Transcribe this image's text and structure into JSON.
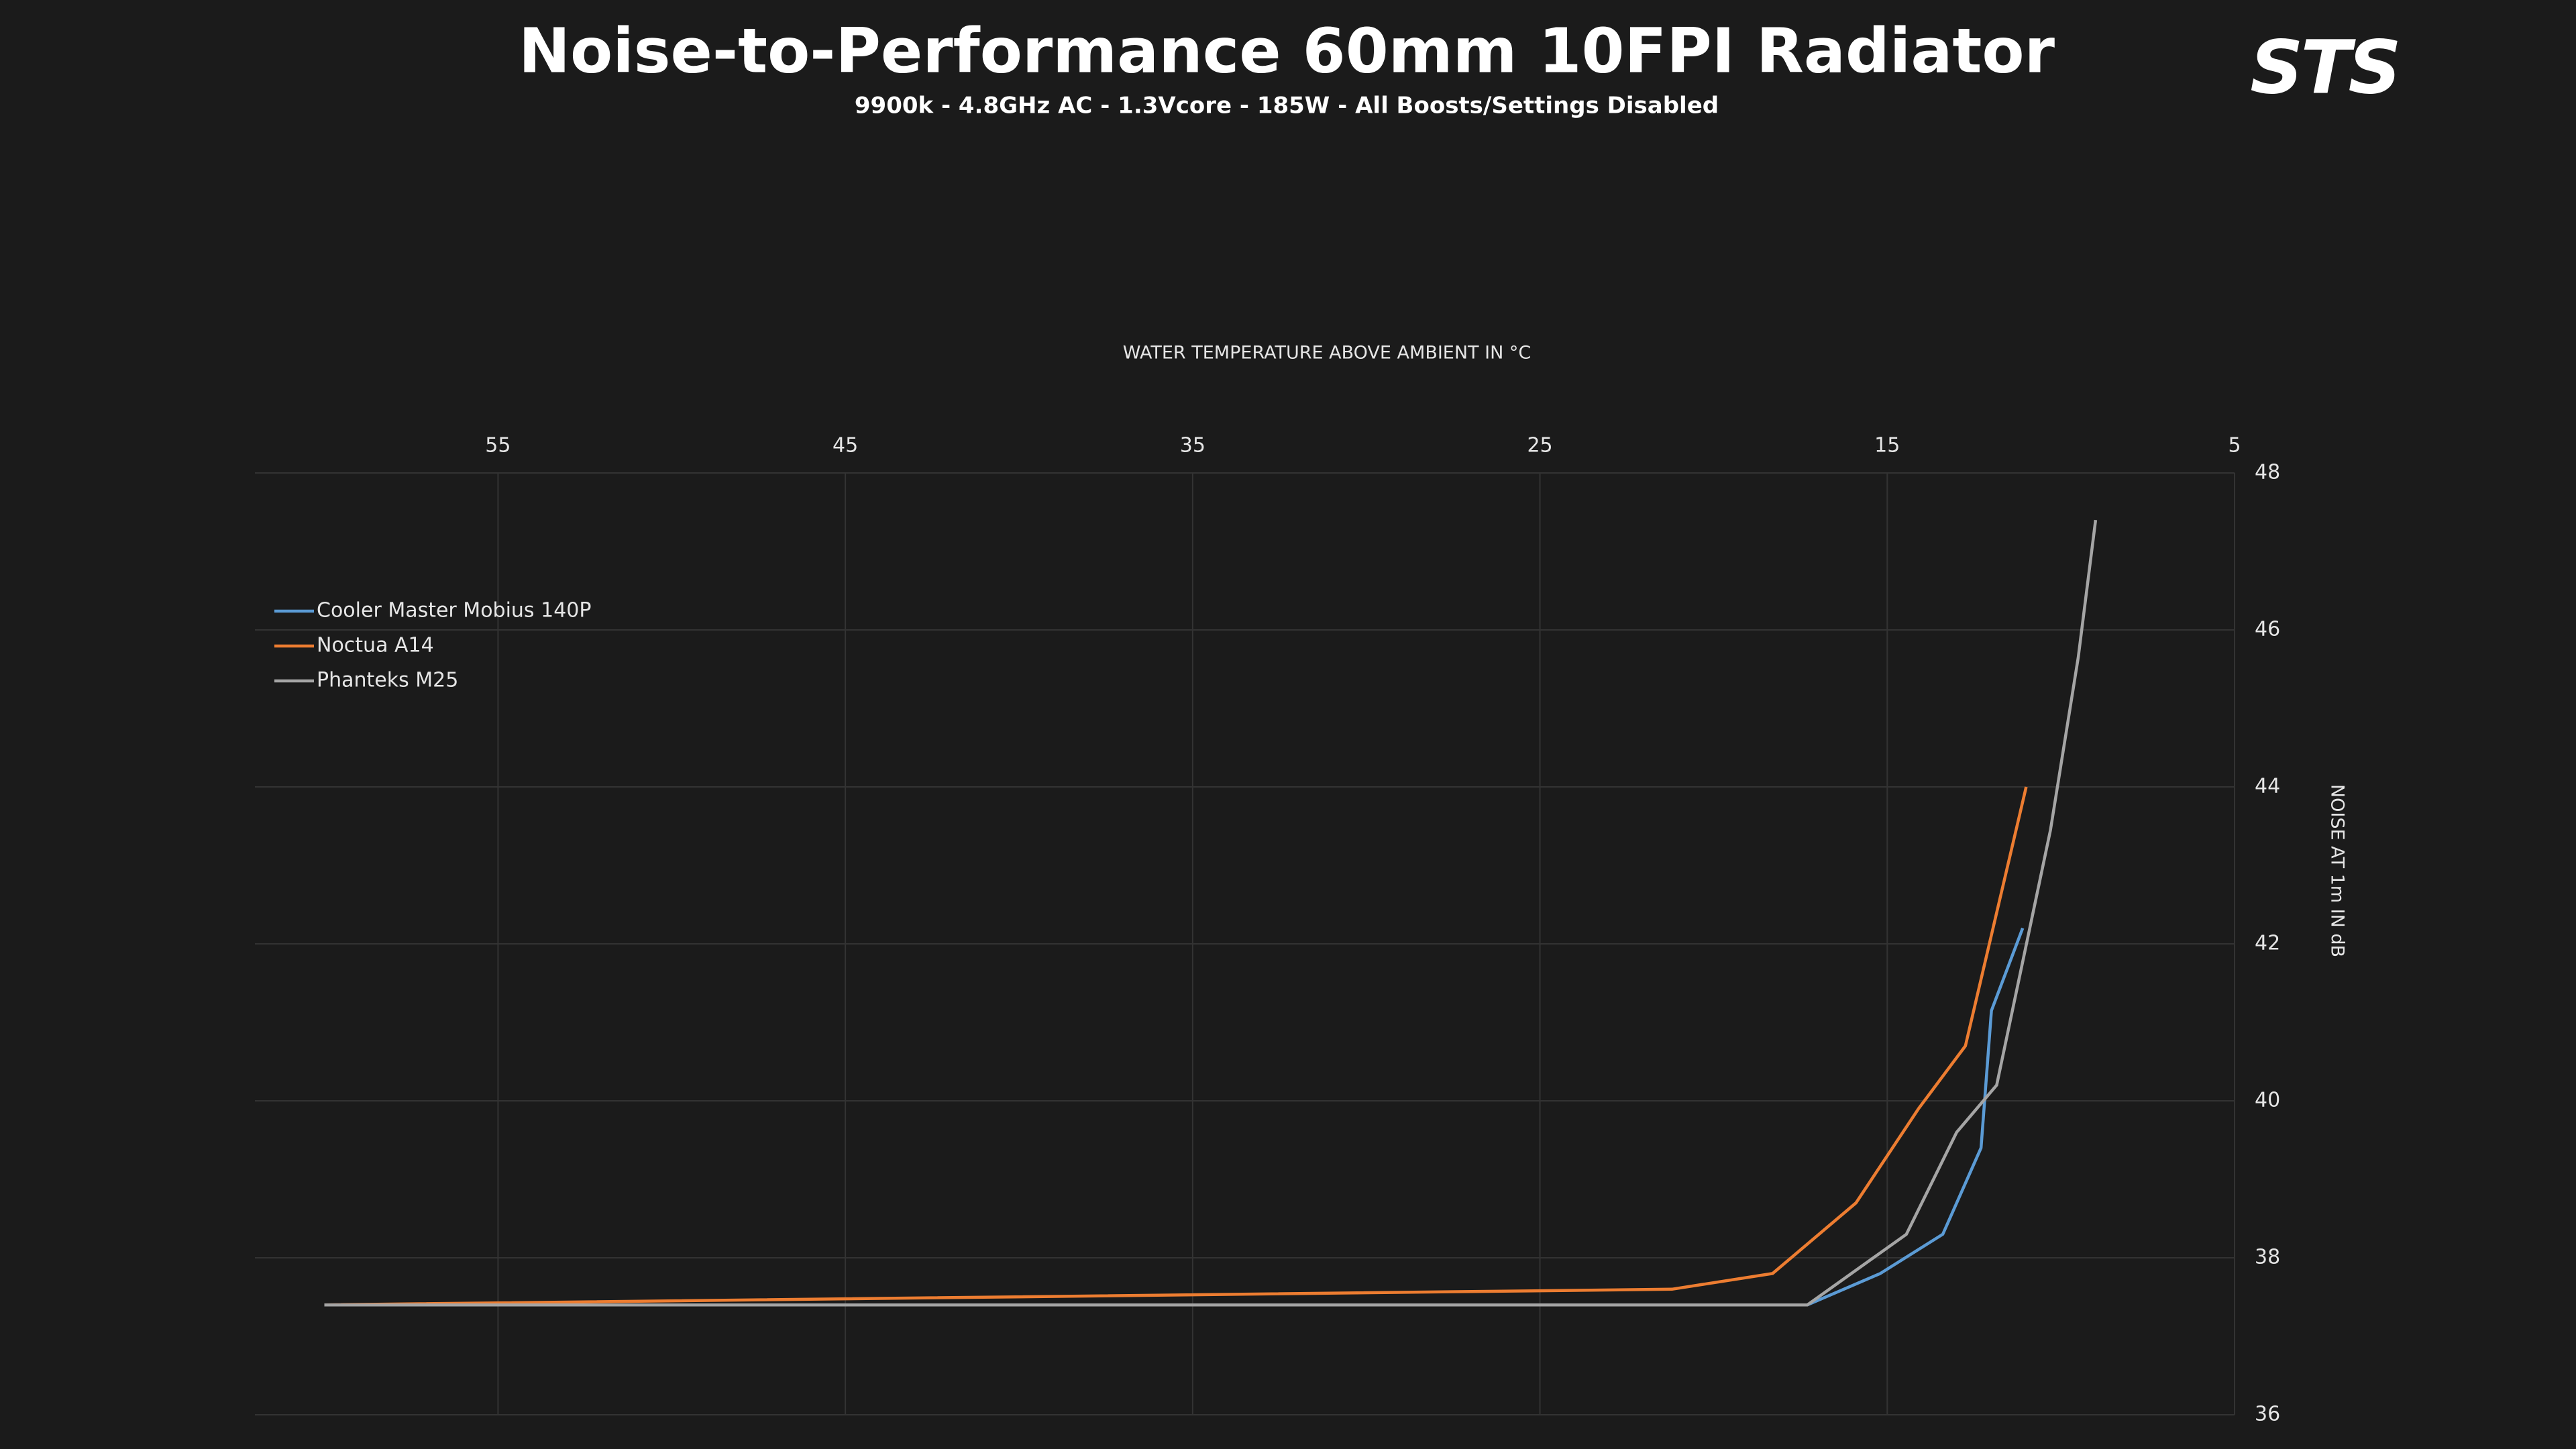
{
  "chart_data": {
    "type": "line",
    "title": "Noise-to-Performance 60mm 10FPI Radiator",
    "subtitle": "9900k - 4.8GHz AC - 1.3Vcore - 185W - All Boosts/Settings Disabled",
    "logo": "STS",
    "x_label": "WATER TEMPERATURE ABOVE AMBIENT IN °C",
    "y_label": "NOISE AT 1m IN dB",
    "xlim": [
      62,
      5
    ],
    "xticks": [
      55,
      45,
      35,
      25,
      15,
      5
    ],
    "ylim": [
      36,
      48
    ],
    "yticks": [
      36,
      38,
      40,
      42,
      44,
      46,
      48
    ],
    "grid": true,
    "legend": "upper-left",
    "series": [
      {
        "name": "Cooler Master Mobius 140P",
        "color": "#5b9bd5",
        "x": [
          60.0,
          17.3,
          15.2,
          13.4,
          12.3,
          12.0,
          11.1
        ],
        "values": [
          37.4,
          37.4,
          37.8,
          38.3,
          39.4,
          41.15,
          42.2
        ]
      },
      {
        "name": "Noctua A14",
        "color": "#ed7d31",
        "x": [
          60.0,
          21.2,
          18.3,
          15.9,
          14.1,
          12.75,
          11.0
        ],
        "values": [
          37.4,
          37.6,
          37.8,
          38.7,
          39.9,
          40.7,
          44.0
        ]
      },
      {
        "name": "Phanteks M25",
        "color": "#a5a5a5",
        "x": [
          60.0,
          17.3,
          14.45,
          13.0,
          11.85,
          10.3,
          9.5,
          9.0
        ],
        "values": [
          37.4,
          37.4,
          38.3,
          39.6,
          40.2,
          43.45,
          45.65,
          47.4
        ]
      }
    ]
  }
}
